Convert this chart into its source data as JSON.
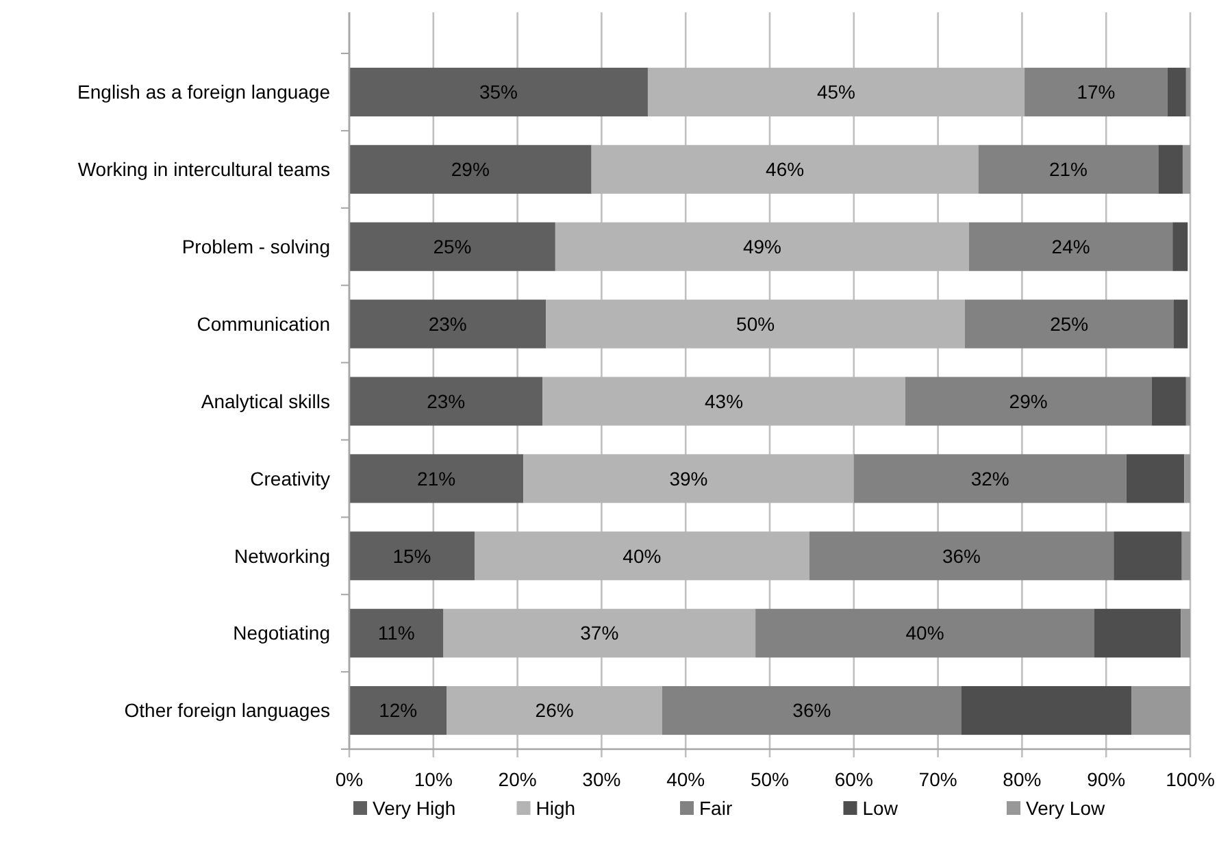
{
  "chart_data": {
    "type": "bar",
    "orientation": "horizontal",
    "stacked": true,
    "categories": [
      "English as a foreign language",
      "Working in intercultural teams",
      "Problem - solving",
      "Communication",
      "Analytical skills",
      "Creativity",
      "Networking",
      "Negotiating",
      "Other foreign languages"
    ],
    "series": [
      {
        "name": "Very High",
        "color": "#606060",
        "values": [
          35.5,
          28.8,
          24.5,
          23.4,
          23.0,
          20.7,
          14.9,
          11.2,
          11.6
        ],
        "value_labels": [
          "35%",
          "29%",
          "25%",
          "23%",
          "23%",
          "21%",
          "15%",
          "11%",
          "12%"
        ]
      },
      {
        "name": "High",
        "color": "#b4b4b4",
        "values": [
          44.8,
          46.0,
          49.2,
          49.8,
          43.1,
          39.3,
          39.8,
          37.1,
          25.6
        ],
        "value_labels": [
          "45%",
          "46%",
          "49%",
          "50%",
          "43%",
          "39%",
          "40%",
          "37%",
          "26%"
        ]
      },
      {
        "name": "Fair",
        "color": "#828282",
        "values": [
          17.0,
          21.4,
          24.2,
          24.8,
          29.3,
          32.4,
          36.2,
          40.3,
          35.6
        ],
        "value_labels": [
          "17%",
          "21%",
          "24%",
          "25%",
          "29%",
          "32%",
          "36%",
          "40%",
          "36%"
        ]
      },
      {
        "name": "Low",
        "color": "#4e4e4e",
        "values": [
          2.2,
          2.9,
          1.8,
          1.7,
          4.1,
          6.9,
          8.1,
          10.3,
          20.2
        ]
      },
      {
        "name": "Very Low",
        "color": "#989898",
        "values": [
          0.5,
          0.9,
          null,
          null,
          0.5,
          0.7,
          1.0,
          1.1,
          7.0
        ]
      }
    ],
    "xlim": [
      0,
      100
    ],
    "xticks": [
      {
        "value": 0,
        "label": "0%"
      },
      {
        "value": 10,
        "label": "10%"
      },
      {
        "value": 20,
        "label": "20%"
      },
      {
        "value": 30,
        "label": "30%"
      },
      {
        "value": 40,
        "label": "40%"
      },
      {
        "value": 50,
        "label": "50%"
      },
      {
        "value": 60,
        "label": "60%"
      },
      {
        "value": 70,
        "label": "70%"
      },
      {
        "value": 80,
        "label": "80%"
      },
      {
        "value": 90,
        "label": "90%"
      },
      {
        "value": 100,
        "label": "100%"
      }
    ],
    "grid": "x",
    "legend": "bottom"
  }
}
